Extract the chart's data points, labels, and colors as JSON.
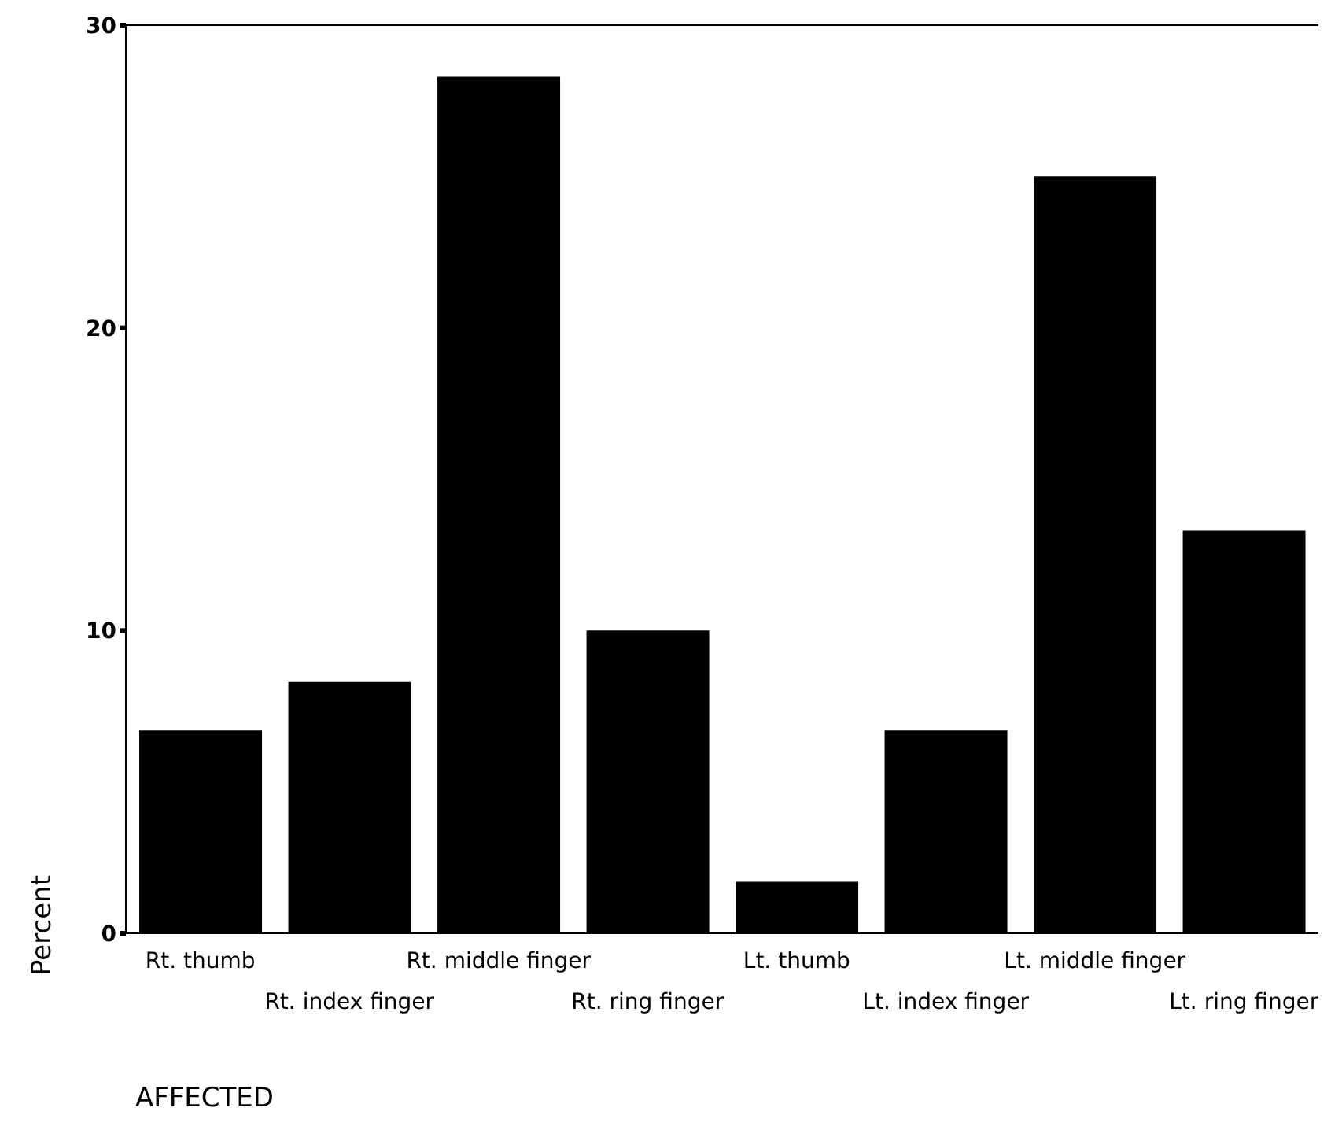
{
  "chart_data": {
    "type": "bar",
    "xlabel": "AFFECTED",
    "ylabel": "Percent",
    "categories": [
      "Rt. thumb",
      "Rt. index finger",
      "Rt. middle finger",
      "Rt. ring finger",
      "Lt. thumb",
      "Lt. index finger",
      "Lt. middle finger",
      "Lt. ring finger"
    ],
    "values": [
      6.7,
      8.3,
      28.3,
      10,
      1.7,
      6.7,
      25,
      13.3
    ],
    "color": "#000000",
    "ylim": [
      0,
      30
    ],
    "yticks": [
      0,
      10,
      20,
      30
    ],
    "grid": false
  }
}
